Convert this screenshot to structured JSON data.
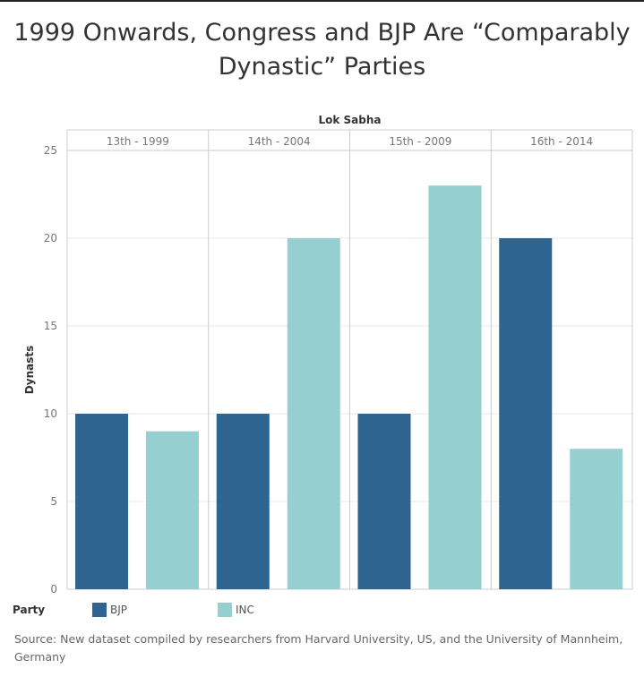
{
  "title_line1": "1999 Onwards, Congress and BJP Are “Comparably",
  "title_line2": "Dynastic” Parties",
  "source": "Source: New dataset compiled by researchers from Harvard University, US, and the University of Mannheim, Germany",
  "colors": {
    "BJP": "#2e6490",
    "INC": "#96cfd0",
    "grid": "#e8e8e8",
    "divider": "#cccccc"
  },
  "chart_data": {
    "type": "bar",
    "column_header": "Lok Sabha",
    "categories": [
      "13th - 1999",
      "14th - 2004",
      "15th - 2009",
      "16th - 2014"
    ],
    "legend_title": "Party",
    "series": [
      {
        "name": "BJP",
        "values": [
          10,
          10,
          10,
          20
        ]
      },
      {
        "name": "INC",
        "values": [
          9,
          20,
          23,
          8
        ]
      }
    ],
    "ylabel": "Dynasts",
    "ylim": [
      0,
      25
    ],
    "yticks": [
      0,
      5,
      10,
      15,
      20,
      25
    ],
    "grid": true,
    "legend_position": "bottom"
  }
}
